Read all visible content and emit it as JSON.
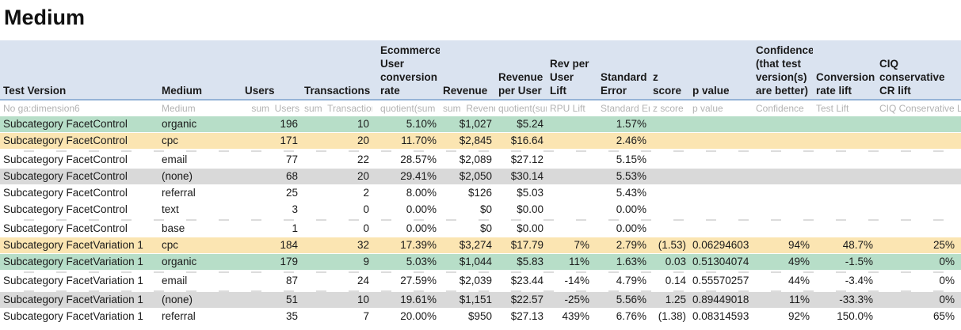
{
  "title": "Medium",
  "colors": {
    "header_bg": "#dae3f0",
    "header_border": "#95b3d7",
    "row_green": "#b7dec8",
    "row_yellow": "#fbe5b2",
    "row_gray": "#d9d9d9",
    "subheader_text": "#b3b3b3"
  },
  "table": {
    "columns": [
      {
        "key": "test_version",
        "label": "Test Version",
        "sublabel": "No ga:dimension6",
        "align": "left",
        "sub_align": "left"
      },
      {
        "key": "medium",
        "label": "Medium",
        "sublabel": "Medium",
        "align": "left",
        "sub_align": "left"
      },
      {
        "key": "users",
        "label": "Users",
        "sublabel": "sum  Users",
        "align": "right",
        "sub_align": "right"
      },
      {
        "key": "transactions",
        "label": "Transactions",
        "sublabel": "sum  Transactions",
        "align": "right",
        "sub_align": "left"
      },
      {
        "key": "conv_rate",
        "label": "Ecommerce\nUser\nconversion\nrate",
        "sublabel": "quotient(sum  Tr",
        "align": "right",
        "sub_align": "left"
      },
      {
        "key": "revenue",
        "label": "Revenue",
        "sublabel": "sum  Revenue",
        "align": "right",
        "sub_align": "left"
      },
      {
        "key": "rev_per_user",
        "label": "Revenue\nper User",
        "sublabel": "quotient(sum",
        "align": "right",
        "sub_align": "left"
      },
      {
        "key": "rpu_lift",
        "label": "Rev per\nUser Lift",
        "sublabel": "RPU Lift",
        "align": "right",
        "sub_align": "left"
      },
      {
        "key": "std_error",
        "label": "Standard\nError",
        "sublabel": "Standard Error",
        "align": "right",
        "sub_align": "left"
      },
      {
        "key": "z_score",
        "label": "z score",
        "sublabel": "z score",
        "align": "right",
        "sub_align": "left"
      },
      {
        "key": "p_value",
        "label": "p value",
        "sublabel": "p value",
        "align": "left",
        "sub_align": "left"
      },
      {
        "key": "confidence",
        "label": "Confidence\n(that test\nversion(s)\nare better)",
        "sublabel": "Confidence",
        "align": "right",
        "sub_align": "left"
      },
      {
        "key": "cr_lift",
        "label": "Conversion\nrate lift",
        "sublabel": "Test Lift",
        "align": "right",
        "sub_align": "left"
      },
      {
        "key": "ciq_lift",
        "label": "CIQ\nconservative\nCR lift",
        "sublabel": "CIQ Conservative Lift",
        "align": "right",
        "sub_align": "left"
      }
    ],
    "rows": [
      {
        "style": "green",
        "cells": [
          "Subcategory FacetControl",
          "organic",
          "196",
          "10",
          "5.10%",
          "$1,027",
          "$5.24",
          "",
          "1.57%",
          "",
          "",
          "",
          "",
          ""
        ]
      },
      {
        "style": "yellow",
        "cells": [
          "Subcategory FacetControl",
          "cpc",
          "171",
          "20",
          "11.70%",
          "$2,845",
          "$16.64",
          "",
          "2.46%",
          "",
          "",
          "",
          "",
          ""
        ]
      },
      {
        "style": "clipped"
      },
      {
        "style": "white",
        "cells": [
          "Subcategory FacetControl",
          "email",
          "77",
          "22",
          "28.57%",
          "$2,089",
          "$27.12",
          "",
          "5.15%",
          "",
          "",
          "",
          "",
          ""
        ]
      },
      {
        "style": "gray",
        "cells": [
          "Subcategory FacetControl",
          "(none)",
          "68",
          "20",
          "29.41%",
          "$2,050",
          "$30.14",
          "",
          "5.53%",
          "",
          "",
          "",
          "",
          ""
        ]
      },
      {
        "style": "white",
        "cells": [
          "Subcategory FacetControl",
          "referral",
          "25",
          "2",
          "8.00%",
          "$126",
          "$5.03",
          "",
          "5.43%",
          "",
          "",
          "",
          "",
          ""
        ]
      },
      {
        "style": "white",
        "cells": [
          "Subcategory FacetControl",
          "text",
          "3",
          "0",
          "0.00%",
          "$0",
          "$0.00",
          "",
          "0.00%",
          "",
          "",
          "",
          "",
          ""
        ]
      },
      {
        "style": "clipped"
      },
      {
        "style": "white",
        "cells": [
          "Subcategory FacetControl",
          "base",
          "1",
          "0",
          "0.00%",
          "$0",
          "$0.00",
          "",
          "0.00%",
          "",
          "",
          "",
          "",
          ""
        ]
      },
      {
        "style": "yellow",
        "cells": [
          "Subcategory FacetVariation 1",
          "cpc",
          "184",
          "32",
          "17.39%",
          "$3,274",
          "$17.79",
          "7%",
          "2.79%",
          "(1.53)",
          "0.06294603",
          "94%",
          "48.7%",
          "25%"
        ]
      },
      {
        "style": "green",
        "cells": [
          "Subcategory FacetVariation 1",
          "organic",
          "179",
          "9",
          "5.03%",
          "$1,044",
          "$5.83",
          "11%",
          "1.63%",
          "0.03",
          "0.51304074",
          "49%",
          "-1.5%",
          "0%"
        ]
      },
      {
        "style": "clipped"
      },
      {
        "style": "white",
        "cells": [
          "Subcategory FacetVariation 1",
          "email",
          "87",
          "24",
          "27.59%",
          "$2,039",
          "$23.44",
          "-14%",
          "4.79%",
          "0.14",
          "0.55570257",
          "44%",
          "-3.4%",
          "0%"
        ]
      },
      {
        "style": "clipped"
      },
      {
        "style": "gray",
        "cells": [
          "Subcategory FacetVariation 1",
          "(none)",
          "51",
          "10",
          "19.61%",
          "$1,151",
          "$22.57",
          "-25%",
          "5.56%",
          "1.25",
          "0.89449018",
          "11%",
          "-33.3%",
          "0%"
        ]
      },
      {
        "style": "white",
        "cells": [
          "Subcategory FacetVariation 1",
          "referral",
          "35",
          "7",
          "20.00%",
          "$950",
          "$27.13",
          "439%",
          "6.76%",
          "(1.38)",
          "0.08314593",
          "92%",
          "150.0%",
          "65%"
        ]
      }
    ]
  }
}
